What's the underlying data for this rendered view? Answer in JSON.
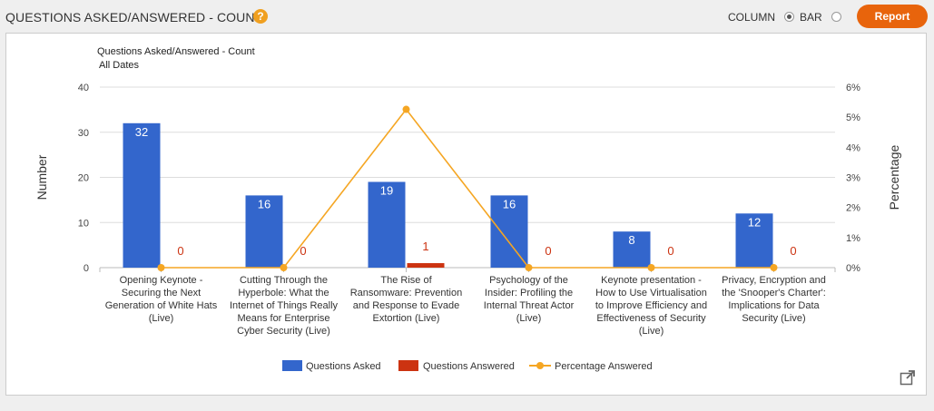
{
  "header": {
    "title": "QUESTIONS ASKED/ANSWERED - COUNT",
    "help_icon": "?",
    "toggle_column_label": "COLUMN",
    "toggle_bar_label": "BAR",
    "selected_toggle": "COLUMN",
    "report_button": "Report"
  },
  "colors": {
    "asked": "#3366cc",
    "answered": "#cc3311",
    "percentage": "#f5a623",
    "report_button": "#e8640c"
  },
  "chart_data": {
    "type": "bar",
    "title": "Questions Asked/Answered - Count",
    "subtitle": "All Dates",
    "ylabel": "Number",
    "y2label": "Percentage",
    "ylim": [
      0,
      40
    ],
    "y_ticks": [
      "0",
      "10",
      "20",
      "30",
      "40"
    ],
    "y2lim": [
      0,
      6
    ],
    "y2_ticks": [
      "0%",
      "1%",
      "2%",
      "3%",
      "4%",
      "5%",
      "6%"
    ],
    "grid": true,
    "legend_position": "bottom",
    "categories": [
      [
        "Opening Keynote -",
        "Securing the Next",
        "Generation of White Hats",
        "(Live)"
      ],
      [
        "Cutting Through the",
        "Hyperbole: What the",
        "Internet of Things Really",
        "Means for Enterprise",
        "Cyber Security (Live)"
      ],
      [
        "The Rise of",
        "Ransomware: Prevention",
        "and Response to Evade",
        "Extortion (Live)"
      ],
      [
        "Psychology of the",
        "Insider: Profiling the",
        "Internal Threat Actor",
        "(Live)"
      ],
      [
        "Keynote presentation -",
        "How to Use Virtualisation",
        "to Improve Efficiency and",
        "Effectiveness of Security",
        "(Live)"
      ],
      [
        "Privacy, Encryption and",
        "the 'Snooper's Charter':",
        "Implications for Data",
        "Security (Live)"
      ]
    ],
    "series": [
      {
        "name": "Questions Asked",
        "type": "bar",
        "values": [
          32,
          16,
          19,
          16,
          8,
          12
        ]
      },
      {
        "name": "Questions Answered",
        "type": "bar",
        "values": [
          0,
          0,
          1,
          0,
          0,
          0
        ]
      },
      {
        "name": "Percentage Answered",
        "type": "line",
        "axis": "right",
        "values": [
          0,
          0,
          5.26,
          0,
          0,
          0
        ]
      }
    ]
  }
}
